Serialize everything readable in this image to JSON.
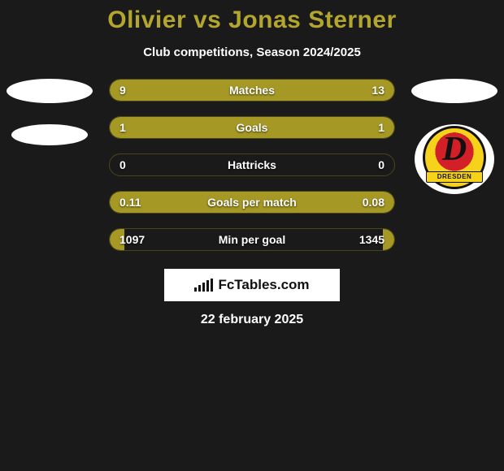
{
  "title": "Olivier vs Jonas Sterner",
  "subtitle": "Club competitions, Season 2024/2025",
  "colors": {
    "accent": "#b2a62e",
    "bar_fill": "#a59825",
    "bar_border": "#4b4618",
    "background": "#1a1a1a",
    "text": "#ffffff"
  },
  "player_left": {
    "name": "Olivier"
  },
  "player_right": {
    "name": "Jonas Sterner",
    "club": "Dynamo Dresden"
  },
  "club_badge_right": {
    "letter": "D",
    "banner_text": "DRESDEN",
    "shield_outer": "#f7d21a",
    "shield_inner": "#d21f28",
    "border": "#111111"
  },
  "stats": [
    {
      "label": "Matches",
      "left_val": "9",
      "right_val": "13",
      "left_pct": 41,
      "right_pct": 59
    },
    {
      "label": "Goals",
      "left_val": "1",
      "right_val": "1",
      "left_pct": 50,
      "right_pct": 50
    },
    {
      "label": "Hattricks",
      "left_val": "0",
      "right_val": "0",
      "left_pct": 0,
      "right_pct": 0
    },
    {
      "label": "Goals per match",
      "left_val": "0.11",
      "right_val": "0.08",
      "left_pct": 58,
      "right_pct": 42
    },
    {
      "label": "Min per goal",
      "left_val": "1097",
      "right_val": "1345",
      "left_pct": 5,
      "right_pct": 4
    }
  ],
  "brand": "FcTables.com",
  "date": "22 february 2025"
}
